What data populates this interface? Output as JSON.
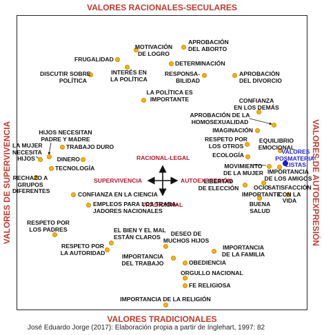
{
  "axes": {
    "top": "VALORES RACIONALES-SECULARES",
    "bottom": "VALORES TRADICIONALES",
    "left": "VALORES DE SUPERVIVENCIA",
    "right": "VALORES DE AUTOEXPRESIÓN"
  },
  "center": {
    "up": "RACIONAL-LEGAL",
    "down": "TRADICIONAL",
    "left": "SUPERVIVENCIA",
    "right": "AUTOEXPRESIÓN"
  },
  "items": {
    "aprobacion_aborto": [
      "APROBACIÓN",
      "DEL ABORTO"
    ],
    "motivacion_logro": [
      "MOTIVACIÓN",
      "DE LOGRO"
    ],
    "frugalidad": [
      "FRUGALIDAD"
    ],
    "determinacion": [
      "DETERMINACIÓN"
    ],
    "discutir_politica": [
      "DISCUTIR SOBRE",
      "POLÍTICA"
    ],
    "interes_politica": [
      "INTERÉS EN",
      "LA POLÍTICA"
    ],
    "responsabilidad": [
      "RESPONSA-",
      "BILIDAD"
    ],
    "aprobacion_divorcio": [
      "APROBACIÓN",
      "DEL DIVORCIO"
    ],
    "politica_importante": [
      "LA POLÍTICA ES",
      "IMPORTANTE"
    ],
    "confianza_demas": [
      "CONFIANZA",
      "EN LOS DEMÁS"
    ],
    "aprobacion_homosexualidad": [
      "APROBACIÓN DE LA",
      "HOMOSEXUALIDAD"
    ],
    "imaginacion": [
      "IMAGINACIÓN"
    ],
    "hijos_padre_madre": [
      "HIJOS NECESITAN",
      "PADRE Y MADRE"
    ],
    "mujer_hijos": [
      "LA MUJER",
      "NECESITA",
      "HIJOS"
    ],
    "trabajo_duro": [
      "TRABAJO DURO"
    ],
    "dinero": [
      "DINERO"
    ],
    "tecnologia": [
      "TECNOLOGÍA"
    ],
    "rechazo_grupos": [
      "RECHAZO A",
      "GRUPOS",
      "DIFERENTES"
    ],
    "respeto_otros": [
      "RESPETO POR",
      "LOS OTROS"
    ],
    "equilibrio_emocional": [
      "EQUILIBRIO",
      "EMOCIONAL"
    ],
    "ecologia": [
      "ECOLOGÍA"
    ],
    "movimiento_mujer": [
      "MOVIMIENTO",
      "DE LA MUJER"
    ],
    "importancia_amigos": [
      "IMPORTANCIA",
      "DE LOS AMIGOS"
    ],
    "libertad_eleccion": [
      "LIBERTAD",
      "DE ELECCIÓN"
    ],
    "ocio_importante": [
      "OCIO",
      "IMPORTANTE"
    ],
    "satisfaccion_vida": [
      "SATISFACCIÓN",
      "CON LA",
      "VIDA"
    ],
    "buena_salud": [
      "BUENA",
      "SALUD"
    ],
    "confianza_ciencia": [
      "CONFIANZA EN LA CIENCIA"
    ],
    "empleos_nacionales": [
      "EMPLEOS PARA LOS TRABA-",
      "JADORES NACIONALES"
    ],
    "respeto_padres": [
      "RESPETO POR",
      "LOS PADRES"
    ],
    "bien_mal": [
      "EL BIEN Y EL MAL",
      "ESTÁN CLAROS"
    ],
    "deseo_hijos": [
      "DESEO DE",
      "MUCHOS HIJOS"
    ],
    "importancia_familia": [
      "IMPORTANCIA",
      "DE LA FAMILIA"
    ],
    "respeto_autoridad": [
      "RESPETO POR",
      "LA AUTORIDAD"
    ],
    "importancia_trabajo": [
      "IMPORTANCIA",
      "DEL TRABAJO"
    ],
    "obediencia": [
      "OBEDIENCIA"
    ],
    "orgullo_nacional": [
      "ORGULLO NACIONAL"
    ],
    "fe_religiosa": [
      "FE RELIGIOSA"
    ],
    "importancia_religion": [
      "IMPORTANCIA DE LA RELIGIÓN"
    ],
    "valores_posmaterialistas": [
      "VALORES",
      "POSMATERIA-",
      "LISTAS"
    ]
  },
  "colors": {
    "axis_title": "#c0392b",
    "dot": "#f7b500",
    "postmaterialist_dot": "#1f1fd9",
    "center_labels": "#b5172b"
  },
  "caption": "José Eduardo Jorge (2017): Elaboración propia a partir de Inglehart, 1997: 82"
}
